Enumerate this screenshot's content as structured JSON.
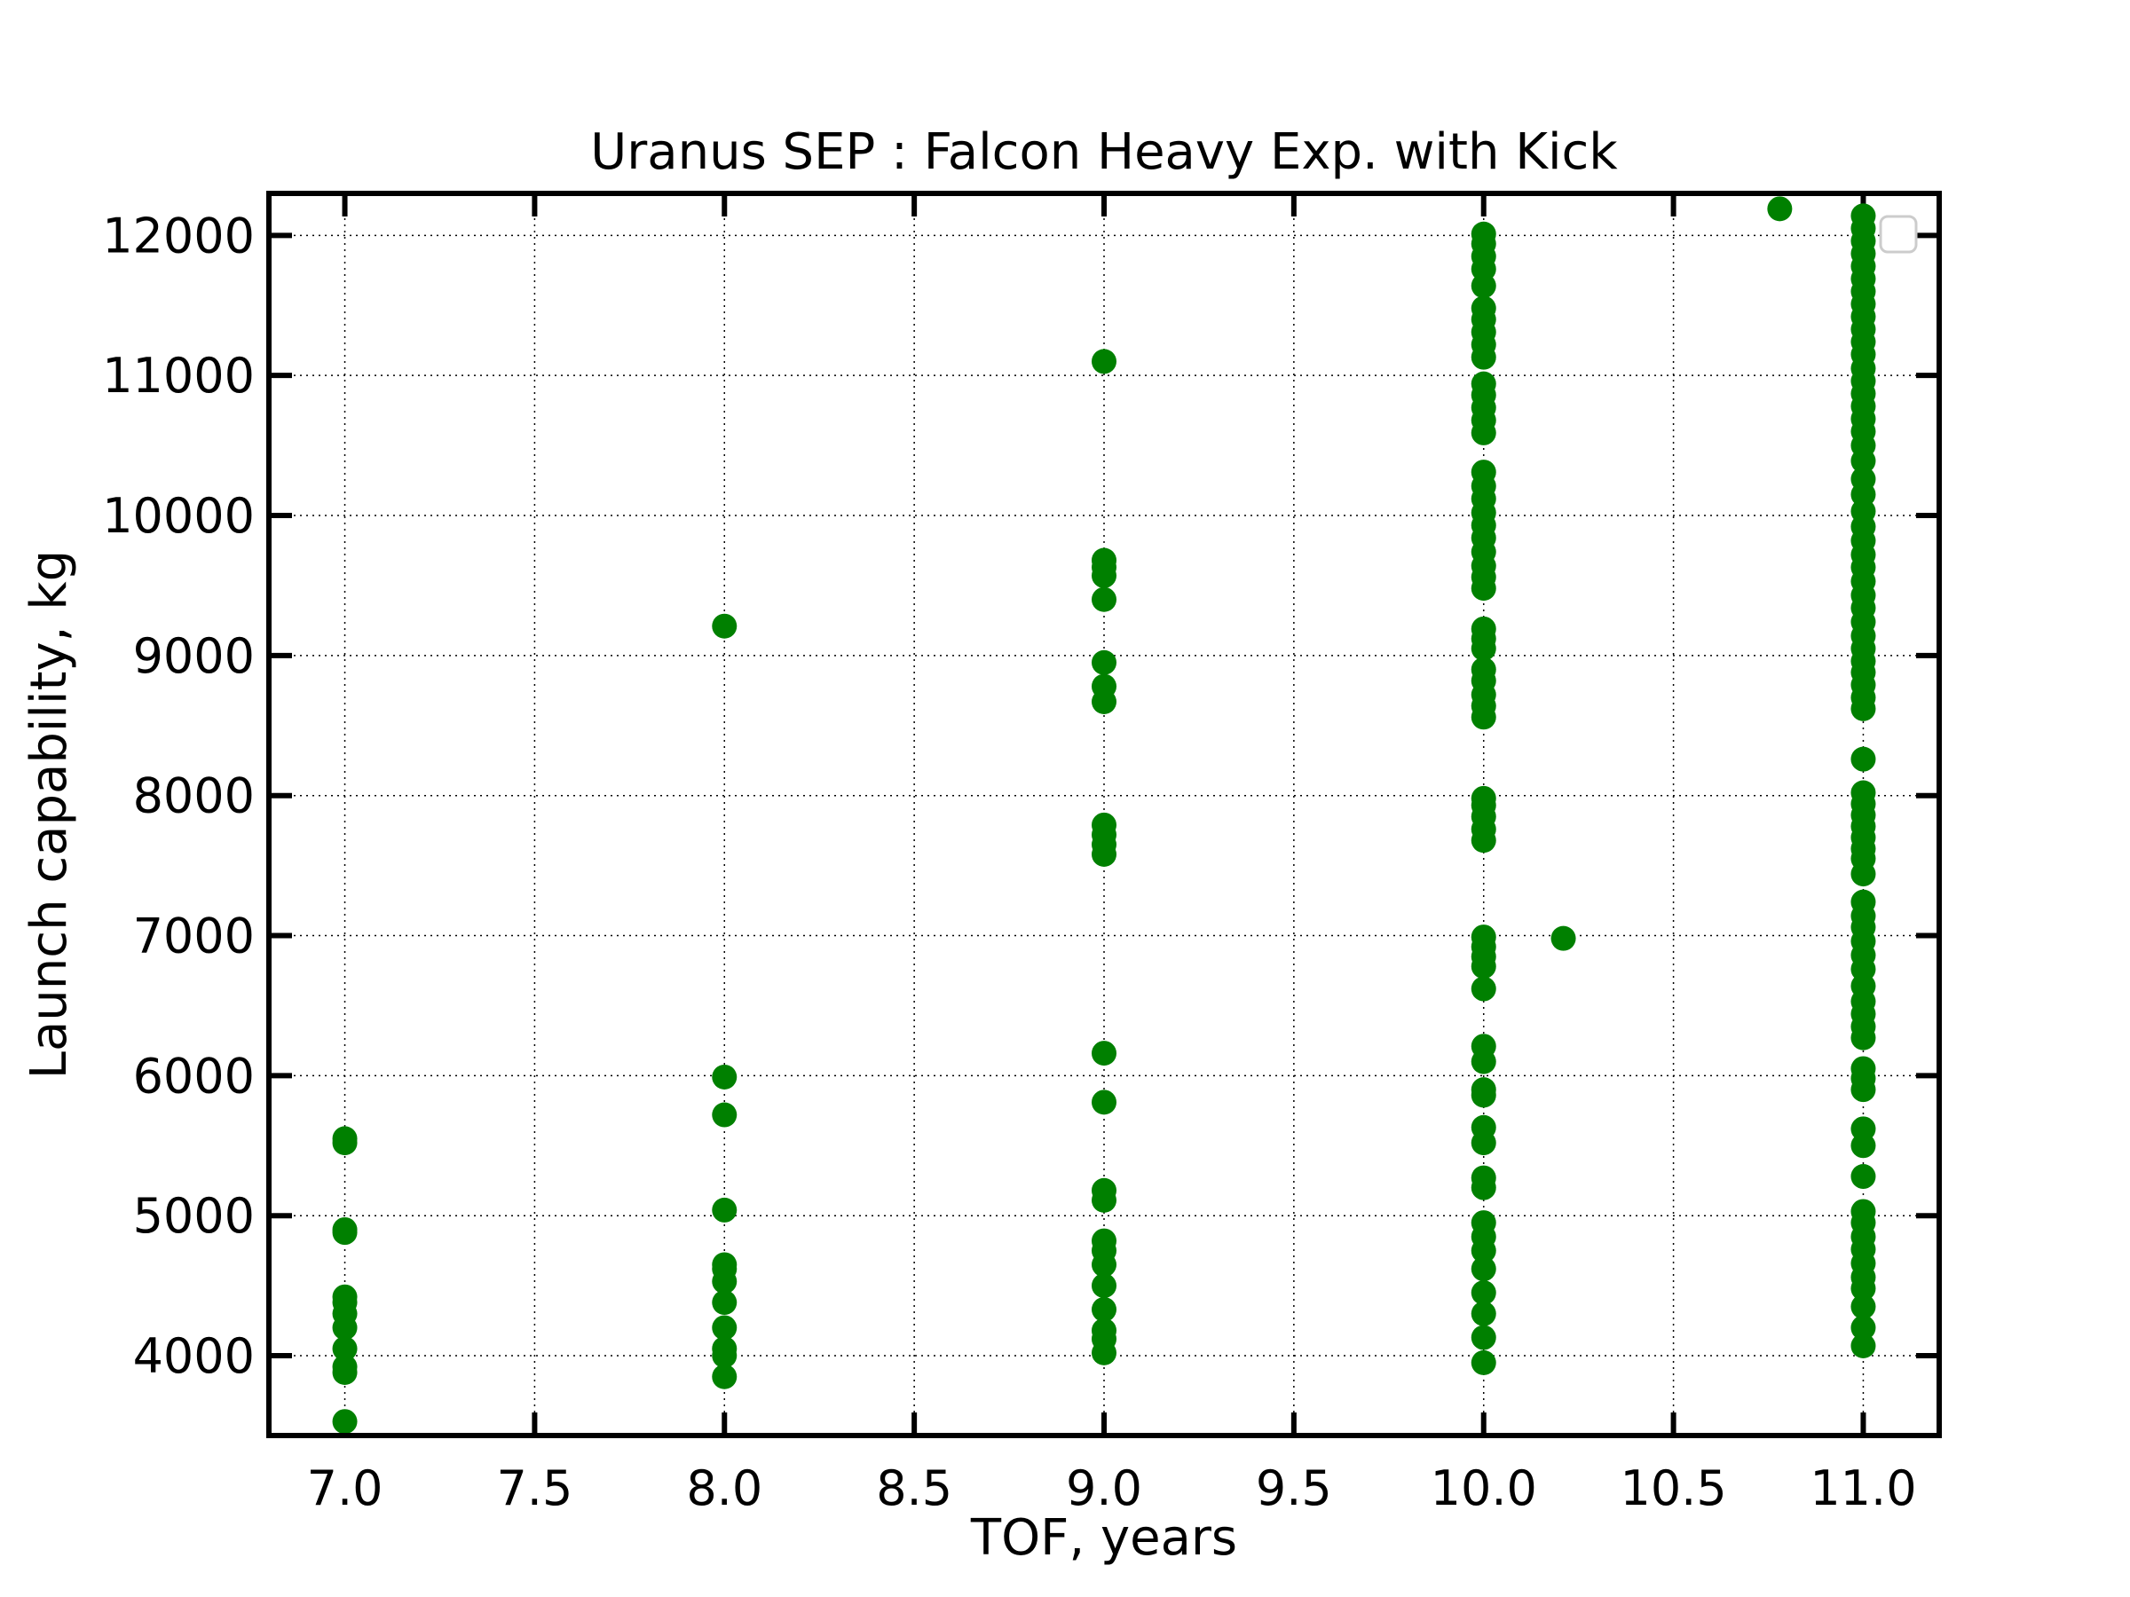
{
  "chart_data": {
    "type": "scatter",
    "title": "Uranus SEP : Falcon Heavy Exp. with Kick",
    "xlabel": "TOF, years",
    "ylabel": "Launch capability, kg",
    "xlim": [
      6.8,
      11.2
    ],
    "ylim": [
      3430,
      12300
    ],
    "x_ticks": [
      7.0,
      7.5,
      8.0,
      8.5,
      9.0,
      9.5,
      10.0,
      10.5,
      11.0
    ],
    "x_tick_labels": [
      "7.0",
      "7.5",
      "8.0",
      "8.5",
      "9.0",
      "9.5",
      "10.0",
      "10.5",
      "11.0"
    ],
    "y_ticks": [
      4000,
      5000,
      6000,
      7000,
      8000,
      9000,
      10000,
      11000,
      12000
    ],
    "y_tick_labels": [
      "4000",
      "5000",
      "6000",
      "7000",
      "8000",
      "9000",
      "10000",
      "11000",
      "12000"
    ],
    "grid": true,
    "grid_style": "dotted",
    "legend": "top-right (empty)",
    "marker_color": "#008000",
    "series": [
      {
        "points": [
          [
            7.0,
            3530
          ],
          [
            7.0,
            3880
          ],
          [
            7.0,
            3920
          ],
          [
            7.0,
            4050
          ],
          [
            7.0,
            4200
          ],
          [
            7.0,
            4300
          ],
          [
            7.0,
            4380
          ],
          [
            7.0,
            4420
          ],
          [
            7.0,
            4880
          ],
          [
            7.0,
            4900
          ],
          [
            7.0,
            5520
          ],
          [
            7.0,
            5550
          ],
          [
            8.0,
            3850
          ],
          [
            8.0,
            4000
          ],
          [
            8.0,
            4050
          ],
          [
            8.0,
            4200
          ],
          [
            8.0,
            4380
          ],
          [
            8.0,
            4530
          ],
          [
            8.0,
            4620
          ],
          [
            8.0,
            4650
          ],
          [
            8.0,
            5040
          ],
          [
            8.0,
            5720
          ],
          [
            8.0,
            5990
          ],
          [
            8.0,
            9210
          ],
          [
            9.0,
            4020
          ],
          [
            9.0,
            4120
          ],
          [
            9.0,
            4180
          ],
          [
            9.0,
            4330
          ],
          [
            9.0,
            4500
          ],
          [
            9.0,
            4650
          ],
          [
            9.0,
            4750
          ],
          [
            9.0,
            4820
          ],
          [
            9.0,
            5110
          ],
          [
            9.0,
            5180
          ],
          [
            9.0,
            5810
          ],
          [
            9.0,
            6160
          ],
          [
            9.0,
            7580
          ],
          [
            9.0,
            7650
          ],
          [
            9.0,
            7720
          ],
          [
            9.0,
            7790
          ],
          [
            9.0,
            8670
          ],
          [
            9.0,
            8780
          ],
          [
            9.0,
            8950
          ],
          [
            9.0,
            9400
          ],
          [
            9.0,
            9570
          ],
          [
            9.0,
            9630
          ],
          [
            9.0,
            9680
          ],
          [
            9.0,
            11100
          ],
          [
            10.0,
            3950
          ],
          [
            10.0,
            4130
          ],
          [
            10.0,
            4300
          ],
          [
            10.0,
            4450
          ],
          [
            10.0,
            4620
          ],
          [
            10.0,
            4750
          ],
          [
            10.0,
            4850
          ],
          [
            10.0,
            4950
          ],
          [
            10.0,
            5200
          ],
          [
            10.0,
            5270
          ],
          [
            10.0,
            5520
          ],
          [
            10.0,
            5630
          ],
          [
            10.0,
            5860
          ],
          [
            10.0,
            5900
          ],
          [
            10.0,
            6100
          ],
          [
            10.0,
            6210
          ],
          [
            10.0,
            6620
          ],
          [
            10.0,
            6780
          ],
          [
            10.0,
            6850
          ],
          [
            10.0,
            6920
          ],
          [
            10.0,
            6990
          ],
          [
            10.0,
            7680
          ],
          [
            10.0,
            7760
          ],
          [
            10.0,
            7850
          ],
          [
            10.0,
            7930
          ],
          [
            10.0,
            7980
          ],
          [
            10.0,
            8560
          ],
          [
            10.0,
            8640
          ],
          [
            10.0,
            8720
          ],
          [
            10.0,
            8820
          ],
          [
            10.0,
            8900
          ],
          [
            10.0,
            9050
          ],
          [
            10.0,
            9120
          ],
          [
            10.0,
            9190
          ],
          [
            10.0,
            9480
          ],
          [
            10.0,
            9560
          ],
          [
            10.0,
            9640
          ],
          [
            10.0,
            9740
          ],
          [
            10.0,
            9840
          ],
          [
            10.0,
            9930
          ],
          [
            10.0,
            10020
          ],
          [
            10.0,
            10120
          ],
          [
            10.0,
            10210
          ],
          [
            10.0,
            10310
          ],
          [
            10.0,
            10590
          ],
          [
            10.0,
            10680
          ],
          [
            10.0,
            10770
          ],
          [
            10.0,
            10860
          ],
          [
            10.0,
            10940
          ],
          [
            10.0,
            11130
          ],
          [
            10.0,
            11220
          ],
          [
            10.0,
            11310
          ],
          [
            10.0,
            11400
          ],
          [
            10.0,
            11480
          ],
          [
            10.0,
            11640
          ],
          [
            10.0,
            11760
          ],
          [
            10.0,
            11850
          ],
          [
            10.0,
            11940
          ],
          [
            10.0,
            12010
          ],
          [
            10.21,
            6980
          ],
          [
            10.78,
            12190
          ],
          [
            11.0,
            4070
          ],
          [
            11.0,
            4200
          ],
          [
            11.0,
            4350
          ],
          [
            11.0,
            4480
          ],
          [
            11.0,
            4560
          ],
          [
            11.0,
            4660
          ],
          [
            11.0,
            4760
          ],
          [
            11.0,
            4850
          ],
          [
            11.0,
            4950
          ],
          [
            11.0,
            5030
          ],
          [
            11.0,
            5280
          ],
          [
            11.0,
            5500
          ],
          [
            11.0,
            5620
          ],
          [
            11.0,
            5900
          ],
          [
            11.0,
            5980
          ],
          [
            11.0,
            6050
          ],
          [
            11.0,
            6270
          ],
          [
            11.0,
            6350
          ],
          [
            11.0,
            6440
          ],
          [
            11.0,
            6530
          ],
          [
            11.0,
            6640
          ],
          [
            11.0,
            6760
          ],
          [
            11.0,
            6860
          ],
          [
            11.0,
            6960
          ],
          [
            11.0,
            7060
          ],
          [
            11.0,
            7140
          ],
          [
            11.0,
            7240
          ],
          [
            11.0,
            7440
          ],
          [
            11.0,
            7550
          ],
          [
            11.0,
            7620
          ],
          [
            11.0,
            7700
          ],
          [
            11.0,
            7780
          ],
          [
            11.0,
            7860
          ],
          [
            11.0,
            7940
          ],
          [
            11.0,
            8020
          ],
          [
            11.0,
            8260
          ],
          [
            11.0,
            8620
          ],
          [
            11.0,
            8700
          ],
          [
            11.0,
            8790
          ],
          [
            11.0,
            8880
          ],
          [
            11.0,
            8960
          ],
          [
            11.0,
            9050
          ],
          [
            11.0,
            9140
          ],
          [
            11.0,
            9240
          ],
          [
            11.0,
            9340
          ],
          [
            11.0,
            9430
          ],
          [
            11.0,
            9530
          ],
          [
            11.0,
            9630
          ],
          [
            11.0,
            9720
          ],
          [
            11.0,
            9820
          ],
          [
            11.0,
            9920
          ],
          [
            11.0,
            10030
          ],
          [
            11.0,
            10150
          ],
          [
            11.0,
            10260
          ],
          [
            11.0,
            10390
          ],
          [
            11.0,
            10500
          ],
          [
            11.0,
            10600
          ],
          [
            11.0,
            10690
          ],
          [
            11.0,
            10780
          ],
          [
            11.0,
            10870
          ],
          [
            11.0,
            10960
          ],
          [
            11.0,
            11050
          ],
          [
            11.0,
            11150
          ],
          [
            11.0,
            11240
          ],
          [
            11.0,
            11330
          ],
          [
            11.0,
            11420
          ],
          [
            11.0,
            11510
          ],
          [
            11.0,
            11600
          ],
          [
            11.0,
            11690
          ],
          [
            11.0,
            11780
          ],
          [
            11.0,
            11870
          ],
          [
            11.0,
            11960
          ],
          [
            11.0,
            12050
          ],
          [
            11.0,
            12140
          ]
        ]
      }
    ]
  }
}
